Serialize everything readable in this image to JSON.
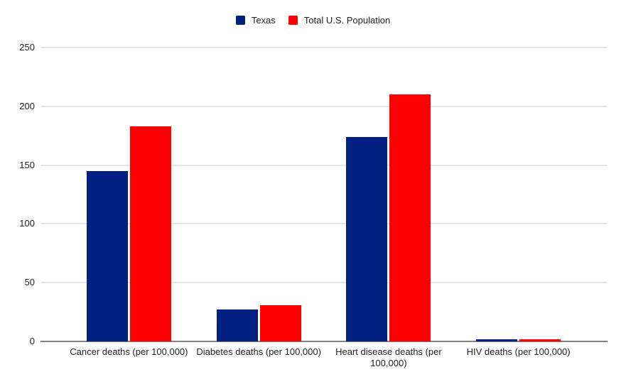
{
  "page": {
    "background": "#ffffff",
    "text_color": "#222222"
  },
  "legend": {
    "items": [
      {
        "label": "Texas",
        "color": "#002181"
      },
      {
        "label": "Total U.S. Population",
        "color": "#ff0000"
      }
    ]
  },
  "chart_data": {
    "type": "bar",
    "title": "",
    "xlabel": "",
    "ylabel": "",
    "categories": [
      "Cancer deaths (per 100,000)",
      "Diabetes deaths (per 100,000)",
      "Heart disease deaths (per 100,000)",
      "HIV deaths (per 100,000)"
    ],
    "series": [
      {
        "name": "Texas",
        "color": "#002181",
        "values": [
          145,
          27,
          174,
          2
        ]
      },
      {
        "name": "Total U.S. Population",
        "color": "#ff0000",
        "values": [
          183,
          31,
          210,
          1.7
        ]
      }
    ],
    "ylim": [
      0,
      250
    ],
    "yticks": [
      0,
      50,
      100,
      150,
      200,
      250
    ],
    "grid": true,
    "legend_position": "top",
    "gridline_color": "#e6e6e6",
    "axis_color": "#808080"
  }
}
